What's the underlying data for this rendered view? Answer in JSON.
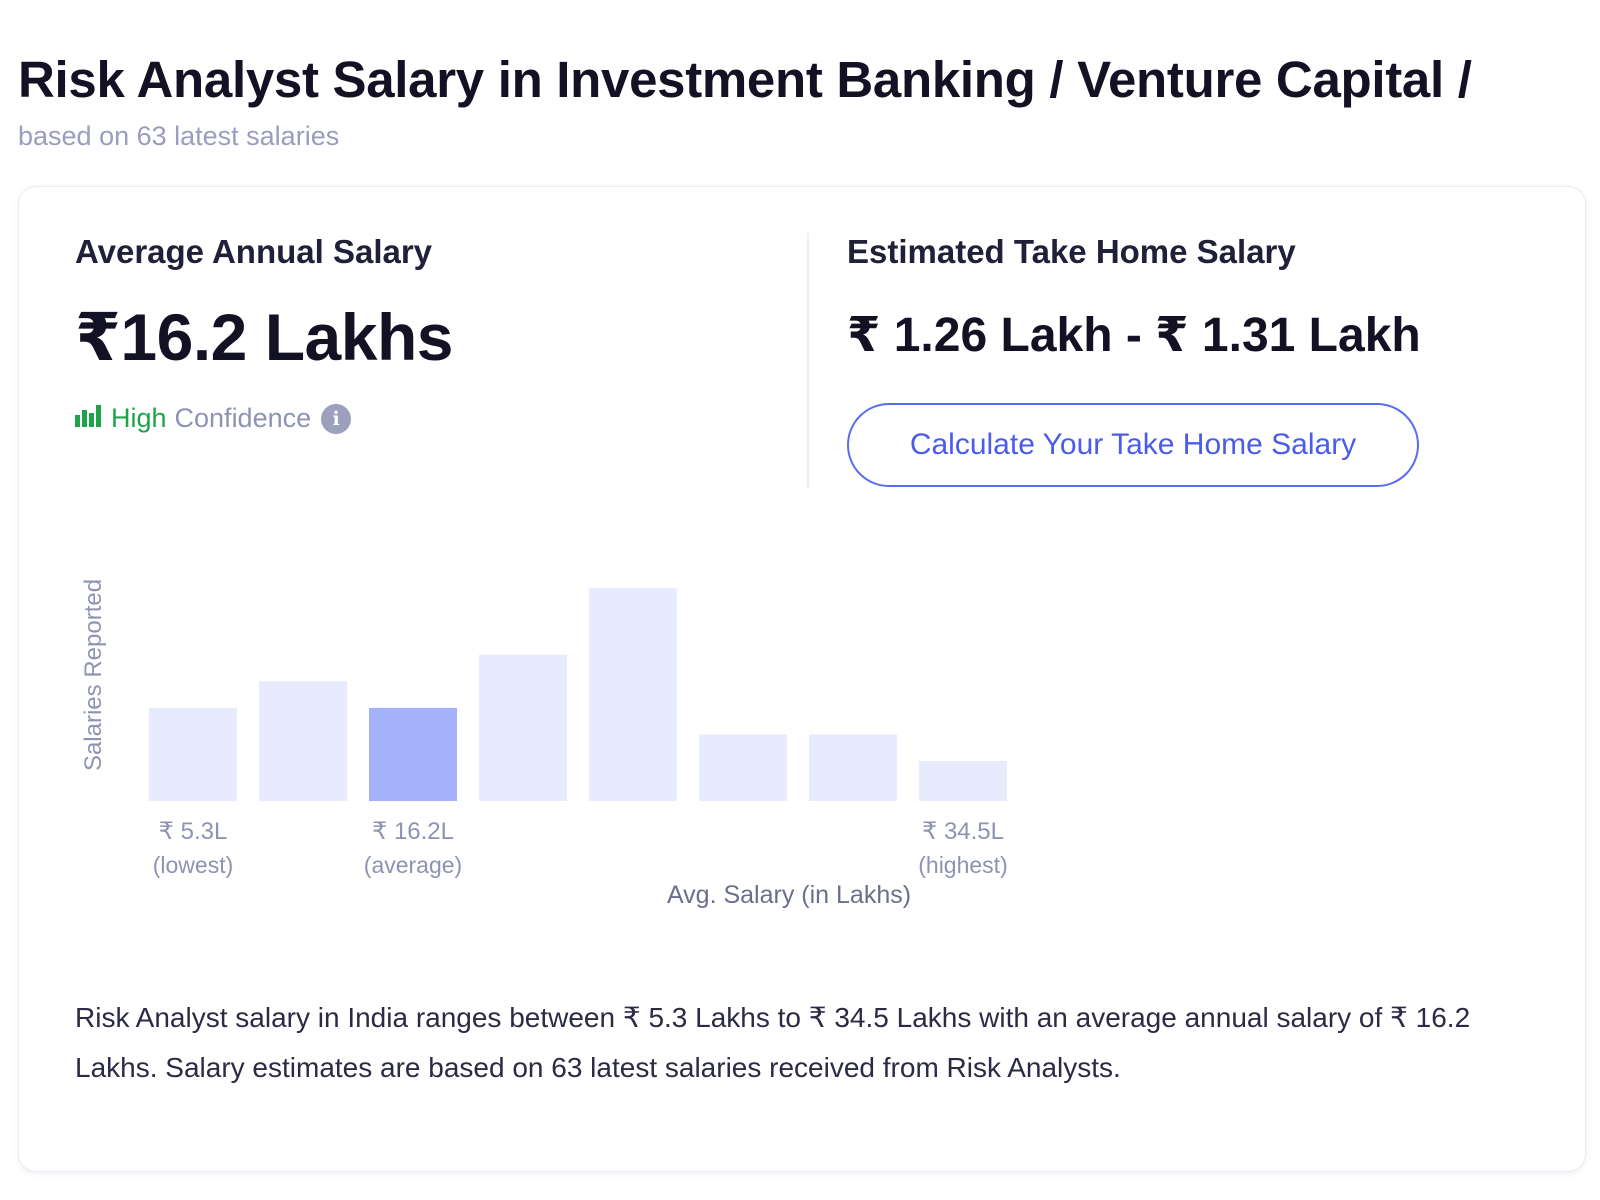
{
  "header": {
    "title": "Risk Analyst Salary in Investment Banking / Venture Capital /",
    "subtitle": "based on 63 latest salaries"
  },
  "summary": {
    "average_label": "Average Annual Salary",
    "average_value": "₹16.2 Lakhs",
    "confidence_level": "High",
    "confidence_text": "Confidence",
    "takehome_label": "Estimated Take Home Salary",
    "takehome_value": "₹ 1.26 Lakh - ₹ 1.31 Lakh",
    "calculate_button": "Calculate Your Take Home Salary"
  },
  "chart_data": {
    "type": "bar",
    "ylabel": "Salaries Reported",
    "xlabel": "Avg. Salary (in Lakhs)",
    "values": [
      7,
      9,
      7,
      11,
      16,
      5,
      5,
      3
    ],
    "highlight_index": 2,
    "tick_labels": [
      {
        "bar_index": 0,
        "value": "₹ 5.3L",
        "note": "(lowest)"
      },
      {
        "bar_index": 2,
        "value": "₹ 16.2L",
        "note": "(average)"
      },
      {
        "bar_index": 7,
        "value": "₹ 34.5L",
        "note": "(highest)"
      }
    ],
    "colors": {
      "bar": "#e8eafd",
      "highlight": "#a4b1fb"
    }
  },
  "description": {
    "text": "Risk Analyst salary in India ranges between ₹ 5.3 Lakhs to ₹ 34.5 Lakhs with an average annual salary of ₹ 16.2 Lakhs. Salary estimates are based on 63 latest salaries received from Risk Analysts."
  }
}
